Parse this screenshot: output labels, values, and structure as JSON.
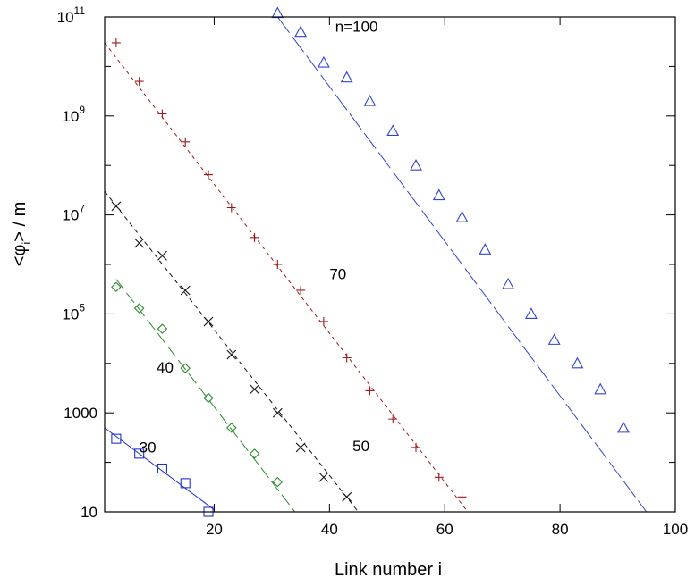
{
  "chart_data": {
    "type": "scatter",
    "xlabel": "Link number i",
    "ylabel_main": "<φ",
    "ylabel_sub": "i",
    "ylabel_tail": "> / m",
    "xlim": [
      1,
      100
    ],
    "ylim": [
      10,
      100000000000
    ],
    "yscale": "log",
    "grid": false,
    "legend": "none",
    "x_ticks": [
      {
        "value": 20,
        "label": "20"
      },
      {
        "value": 40,
        "label": "40"
      },
      {
        "value": 60,
        "label": "60"
      },
      {
        "value": 80,
        "label": "80"
      },
      {
        "value": 100,
        "label": "100"
      }
    ],
    "y_ticks": [
      {
        "value": 10,
        "base": "10",
        "exp": ""
      },
      {
        "value": 1000,
        "base": "1000",
        "exp": ""
      },
      {
        "value": 100000,
        "base": "10",
        "exp": "5"
      },
      {
        "value": 10000000,
        "base": "10",
        "exp": "7"
      },
      {
        "value": 1000000000,
        "base": "10",
        "exp": "9"
      },
      {
        "value": 100000000000,
        "base": "10",
        "exp": "11"
      }
    ],
    "series": [
      {
        "name": "30",
        "label_at": [
          7,
          160
        ],
        "marker": "square",
        "color": "#2233cc",
        "dash": "none",
        "fit": [
          [
            1,
            500
          ],
          [
            20,
            11
          ]
        ],
        "points": [
          [
            3,
            300
          ],
          [
            7,
            150
          ],
          [
            11,
            75
          ],
          [
            15,
            38
          ],
          [
            19,
            10
          ]
        ]
      },
      {
        "name": "40",
        "label_at": [
          10,
          6500
        ],
        "marker": "diamond",
        "color": "#2a8a2a",
        "dash": "14,5",
        "fit": [
          [
            3,
            500000
          ],
          [
            34,
            10
          ]
        ],
        "points": [
          [
            3,
            350000
          ],
          [
            7,
            130000
          ],
          [
            11,
            50000
          ],
          [
            15,
            8000
          ],
          [
            19,
            2000
          ],
          [
            23,
            500
          ],
          [
            27,
            150
          ],
          [
            31,
            40
          ]
        ]
      },
      {
        "name": "50",
        "label_at": [
          44,
          170
        ],
        "marker": "x",
        "color": "#111111",
        "dash": "5,4",
        "fit": [
          [
            1,
            30000000
          ],
          [
            45,
            10
          ]
        ],
        "points": [
          [
            3,
            15000000
          ],
          [
            7,
            2700000
          ],
          [
            11,
            1500000
          ],
          [
            15,
            300000
          ],
          [
            19,
            70000
          ],
          [
            23,
            15000
          ],
          [
            27,
            3000
          ],
          [
            31,
            1000
          ],
          [
            35,
            200
          ],
          [
            39,
            50
          ],
          [
            43,
            20
          ]
        ]
      },
      {
        "name": "70",
        "label_at": [
          40,
          500000
        ],
        "marker": "plus",
        "color": "#a01818",
        "dash": "4,4",
        "fit": [
          [
            1,
            30000000000
          ],
          [
            64,
            10
          ]
        ],
        "points": [
          [
            3,
            30000000000
          ],
          [
            7,
            5000000000
          ],
          [
            11,
            1100000000
          ],
          [
            15,
            300000000
          ],
          [
            19,
            65000000
          ],
          [
            23,
            14000000
          ],
          [
            27,
            3500000
          ],
          [
            31,
            1000000
          ],
          [
            35,
            300000
          ],
          [
            39,
            70000
          ],
          [
            43,
            13000
          ],
          [
            47,
            2800
          ],
          [
            51,
            750
          ],
          [
            55,
            200
          ],
          [
            59,
            50
          ],
          [
            63,
            20
          ]
        ]
      },
      {
        "name": "n=100",
        "label_at": [
          41,
          50000000000
        ],
        "marker": "triangle",
        "color": "#3344cc",
        "dash": "22,5",
        "fit": [
          [
            31,
            100000000000
          ],
          [
            95,
            10
          ]
        ],
        "points": [
          [
            31,
            120000000000
          ],
          [
            35,
            50000000000
          ],
          [
            39,
            12000000000
          ],
          [
            43,
            6000000000
          ],
          [
            47,
            2000000000
          ],
          [
            51,
            500000000
          ],
          [
            55,
            100000000
          ],
          [
            59,
            25000000
          ],
          [
            63,
            9000000
          ],
          [
            67,
            2000000
          ],
          [
            71,
            400000
          ],
          [
            75,
            100000
          ],
          [
            79,
            30000
          ],
          [
            83,
            10000
          ],
          [
            87,
            3000
          ],
          [
            91,
            500
          ]
        ]
      }
    ]
  }
}
